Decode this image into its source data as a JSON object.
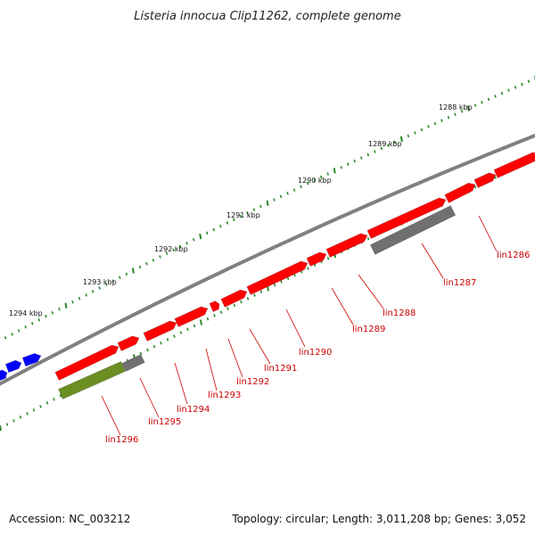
{
  "title": "Listeria innocua Clip11262, complete genome",
  "footer": {
    "accession": "Accession: NC_003212",
    "summary": "Topology: circular; Length: 3,011,208 bp; Genes: 3,052"
  },
  "colors": {
    "background": "#ffffff",
    "backbone": "#808080",
    "tick": "#2a8a2a",
    "gene_red": "#ff0000",
    "gene_blue": "#0000ff",
    "gene_gray": "#707070",
    "gene_green": "#6b8e23",
    "label": "#cc0000"
  },
  "kbp_labels": [
    "1294 kbp",
    "1293 kbp",
    "1292 kbp",
    "1291 kbp",
    "1290 kbp",
    "1289 kbp",
    "1288 kbp"
  ],
  "gene_labels": [
    "lin1286",
    "lin1287",
    "lin1288",
    "lin1289",
    "lin1290",
    "lin1291",
    "lin1292",
    "lin1293",
    "lin1294",
    "lin1295",
    "lin1296"
  ]
}
